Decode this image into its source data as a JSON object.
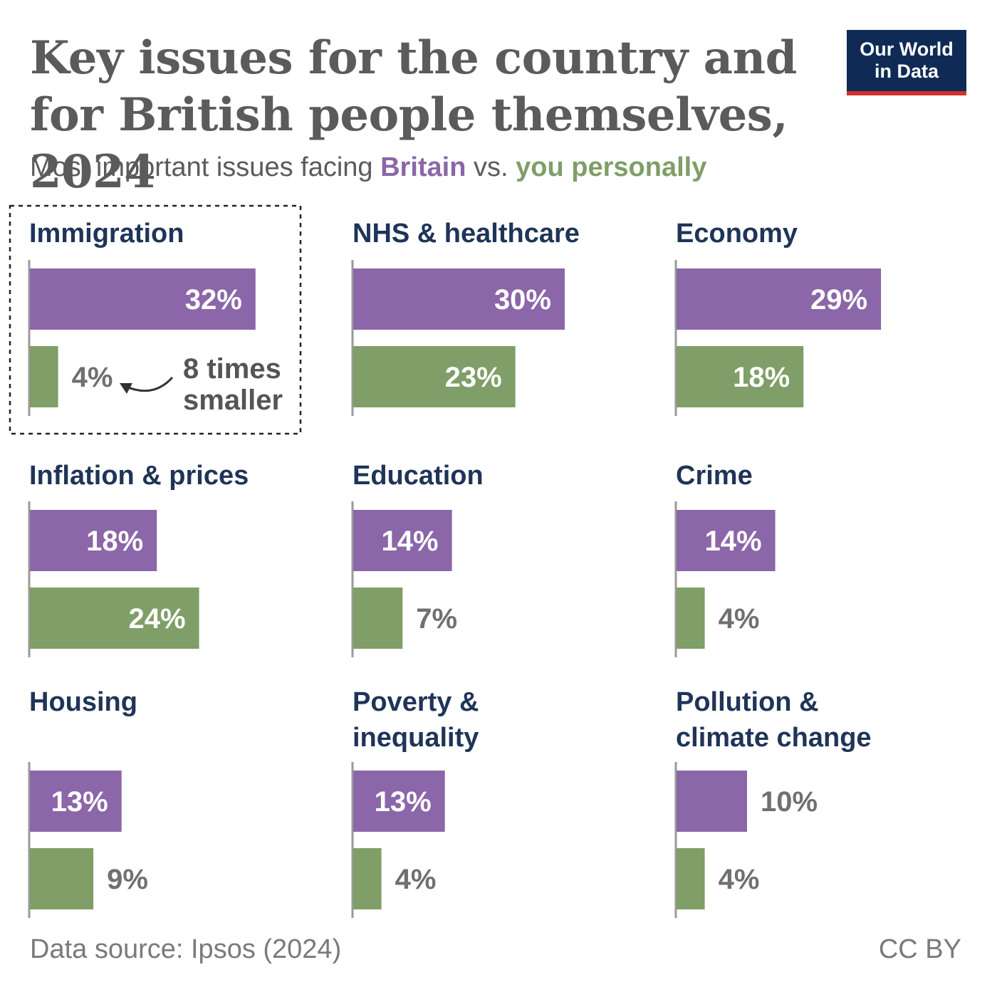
{
  "header": {
    "title": "Key issues for the country and for British people themselves, 2024",
    "subtitle_prefix": "Most important issues facing ",
    "subtitle_series1": "Britain",
    "subtitle_mid": " vs. ",
    "subtitle_series2": "you personally"
  },
  "logo": {
    "line1": "Our World",
    "line2": "in Data"
  },
  "footer": {
    "source": "Data source: Ipsos (2024)",
    "license": "CC BY"
  },
  "colors": {
    "britain": "#8b66a8",
    "personal": "#7f9e68",
    "category_title": "#1f3458",
    "axis": "#9a9a9a",
    "label_outside": "#707070"
  },
  "chart_data": {
    "type": "bar",
    "orientation": "horizontal",
    "series": [
      {
        "name": "Britain",
        "values": [
          32,
          30,
          29,
          18,
          14,
          14,
          13,
          13,
          10
        ]
      },
      {
        "name": "you personally",
        "values": [
          4,
          23,
          18,
          24,
          7,
          4,
          9,
          4,
          4
        ]
      }
    ],
    "categories": [
      "Immigration",
      "NHS & healthcare",
      "Economy",
      "Inflation & prices",
      "Education",
      "Crime",
      "Housing",
      "Poverty & inequality",
      "Pollution & climate change"
    ],
    "category_lines": [
      [
        "Immigration"
      ],
      [
        "NHS & healthcare"
      ],
      [
        "Economy"
      ],
      [
        "Inflation & prices"
      ],
      [
        "Education"
      ],
      [
        "Crime"
      ],
      [
        "Housing"
      ],
      [
        "Poverty &",
        "inequality"
      ],
      [
        "Pollution &",
        "climate change"
      ]
    ],
    "value_labels": {
      "Britain": [
        "32%",
        "30%",
        "29%",
        "18%",
        "14%",
        "14%",
        "13%",
        "13%",
        "10%"
      ],
      "you personally": [
        "4%",
        "23%",
        "18%",
        "24%",
        "7%",
        "4%",
        "9%",
        "4%",
        "4%"
      ]
    },
    "unit": "%",
    "annotation": {
      "category": "Immigration",
      "lines": [
        "8 times",
        "smaller"
      ]
    }
  }
}
